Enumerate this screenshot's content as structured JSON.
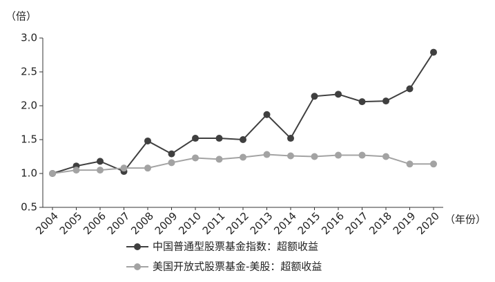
{
  "chart_data": {
    "type": "line",
    "y_label": "（倍）",
    "x_label": "（年份）",
    "categories": [
      "2004",
      "2005",
      "2006",
      "2007",
      "2008",
      "2009",
      "2010",
      "2011",
      "2012",
      "2013",
      "2014",
      "2015",
      "2016",
      "2017",
      "2018",
      "2019",
      "2020"
    ],
    "series": [
      {
        "name": "中国普通型股票基金指数：超额收益",
        "color": "#3f3f3f",
        "values": [
          1.0,
          1.11,
          1.18,
          1.03,
          1.48,
          1.29,
          1.52,
          1.52,
          1.5,
          1.87,
          1.52,
          2.14,
          2.17,
          2.06,
          2.07,
          2.25,
          2.79
        ]
      },
      {
        "name": "美国开放式股票基金-美股：超额收益",
        "color": "#a3a3a3",
        "values": [
          1.0,
          1.05,
          1.05,
          1.08,
          1.08,
          1.16,
          1.23,
          1.21,
          1.24,
          1.28,
          1.26,
          1.25,
          1.27,
          1.27,
          1.25,
          1.14,
          1.14
        ]
      }
    ],
    "ylim": [
      0.5,
      3.0
    ],
    "yticks": [
      {
        "value": 0.5,
        "label": "0.5"
      },
      {
        "value": 1.0,
        "label": "1.0"
      },
      {
        "value": 1.5,
        "label": "1.5"
      },
      {
        "value": 2.0,
        "label": "2.0"
      },
      {
        "value": 2.5,
        "label": "2.5"
      },
      {
        "value": 3.0,
        "label": "3.0"
      }
    ],
    "grid": false
  }
}
